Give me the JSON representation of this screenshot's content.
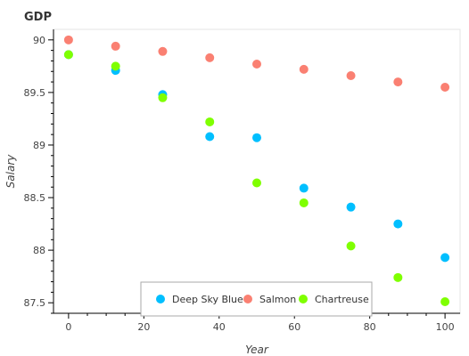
{
  "chart_data": {
    "type": "scatter",
    "title": "GDP",
    "xlabel": "Year",
    "ylabel": "Salary",
    "xlim": [
      -4,
      104
    ],
    "ylim": [
      87.4,
      90.1
    ],
    "x_ticks": [
      0,
      20,
      40,
      60,
      80,
      100
    ],
    "y_ticks": [
      87.5,
      88,
      88.5,
      89,
      89.5,
      90
    ],
    "x_tick_labels": [
      "0",
      "20",
      "40",
      "60",
      "80",
      "100"
    ],
    "y_tick_labels": [
      "87.5",
      "88",
      "88.5",
      "89",
      "89.5",
      "90"
    ],
    "grid": false,
    "legend_position": "bottom-center",
    "x": [
      0,
      12.5,
      25,
      37.5,
      50,
      62.5,
      75,
      87.5,
      100
    ],
    "series": [
      {
        "name": "Deep Sky Blue",
        "color": "#00bfff",
        "values": [
          89.86,
          89.71,
          89.48,
          89.08,
          89.07,
          88.59,
          88.41,
          88.25,
          87.93
        ]
      },
      {
        "name": "Salmon",
        "color": "#fa8072",
        "values": [
          90.0,
          89.94,
          89.89,
          89.83,
          89.77,
          89.72,
          89.66,
          89.6,
          89.55
        ]
      },
      {
        "name": "Chartreuse",
        "color": "#7fff00",
        "values": [
          89.86,
          89.75,
          89.45,
          89.22,
          88.64,
          88.45,
          88.04,
          87.74,
          87.51
        ]
      }
    ]
  }
}
